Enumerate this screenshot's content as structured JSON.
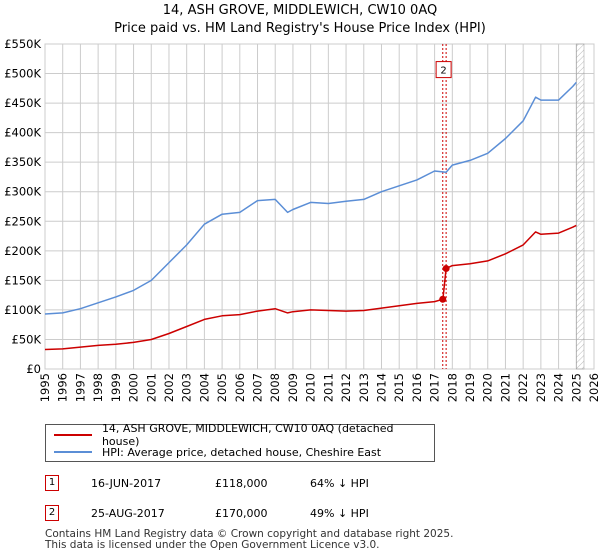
{
  "title": "14, ASH GROVE, MIDDLEWICH, CW10 0AQ",
  "subtitle": "Price paid vs. HM Land Registry's House Price Index (HPI)",
  "legend": {
    "property": "14, ASH GROVE, MIDDLEWICH, CW10 0AQ (detached house)",
    "hpi": "HPI: Average price, detached house, Cheshire East"
  },
  "sales": [
    {
      "num": "1",
      "date": "16-JUN-2017",
      "price": "£118,000",
      "delta": "64% ↓ HPI"
    },
    {
      "num": "2",
      "date": "25-AUG-2017",
      "price": "£170,000",
      "delta": "49% ↓ HPI"
    }
  ],
  "footer": {
    "line1": "Contains HM Land Registry data © Crown copyright and database right 2025.",
    "line2": "This data is licensed under the Open Government Licence v3.0."
  },
  "colors": {
    "property": "#cc0000",
    "hpi": "#5b8ed6",
    "grid": "#cccccc",
    "marker_line": "#cc0000"
  },
  "chart_data": {
    "type": "line",
    "ylim": [
      0,
      550000
    ],
    "xlim": [
      1995,
      2026
    ],
    "y_ticks": [
      {
        "v": 0,
        "label": "£0"
      },
      {
        "v": 50000,
        "label": "£50K"
      },
      {
        "v": 100000,
        "label": "£100K"
      },
      {
        "v": 150000,
        "label": "£150K"
      },
      {
        "v": 200000,
        "label": "£200K"
      },
      {
        "v": 250000,
        "label": "£250K"
      },
      {
        "v": 300000,
        "label": "£300K"
      },
      {
        "v": 350000,
        "label": "£350K"
      },
      {
        "v": 400000,
        "label": "£400K"
      },
      {
        "v": 450000,
        "label": "£450K"
      },
      {
        "v": 500000,
        "label": "£500K"
      },
      {
        "v": 550000,
        "label": "£550K"
      }
    ],
    "x_ticks": [
      "1995",
      "1996",
      "1997",
      "1998",
      "1999",
      "2000",
      "2001",
      "2002",
      "2003",
      "2004",
      "2005",
      "2006",
      "2007",
      "2008",
      "2009",
      "2010",
      "2011",
      "2012",
      "2013",
      "2014",
      "2015",
      "2016",
      "2017",
      "2018",
      "2019",
      "2020",
      "2021",
      "2022",
      "2023",
      "2024",
      "2025",
      "2026"
    ],
    "hatch_from": 2025.0,
    "markers": [
      {
        "label": "1",
        "x": 2017.46,
        "y": 118000,
        "show_box": false
      },
      {
        "label": "2",
        "x": 2017.65,
        "y": 170000,
        "show_box": true,
        "box_y": 505000
      }
    ],
    "series": [
      {
        "name": "HPI: Average price, detached house, Cheshire East",
        "color_key": "hpi",
        "x": [
          1995,
          1996,
          1997,
          1998,
          1999,
          2000,
          2001,
          2002,
          2003,
          2004,
          2005,
          2006,
          2007,
          2008,
          2008.7,
          2009,
          2010,
          2011,
          2012,
          2013,
          2014,
          2015,
          2016,
          2017,
          2017.65,
          2018,
          2019,
          2020,
          2021,
          2022,
          2022.7,
          2023,
          2024,
          2024.8,
          2025.0
        ],
        "y": [
          93000,
          95000,
          102000,
          112000,
          122000,
          133000,
          150000,
          180000,
          210000,
          245000,
          262000,
          265000,
          285000,
          287000,
          265000,
          270000,
          282000,
          280000,
          284000,
          287000,
          300000,
          310000,
          320000,
          335000,
          333000,
          345000,
          353000,
          365000,
          390000,
          420000,
          460000,
          455000,
          455000,
          478000,
          485000
        ]
      },
      {
        "name": "14, ASH GROVE, MIDDLEWICH, CW10 0AQ (detached house)",
        "color_key": "property",
        "x": [
          1995,
          1996,
          1997,
          1998,
          1999,
          2000,
          2001,
          2002,
          2003,
          2004,
          2005,
          2006,
          2007,
          2008,
          2008.7,
          2009,
          2010,
          2011,
          2012,
          2013,
          2014,
          2015,
          2016,
          2017,
          2017.46,
          2017.47,
          2017.65,
          2018,
          2019,
          2020,
          2021,
          2022,
          2022.7,
          2023,
          2024,
          2024.8,
          2025.0
        ],
        "y": [
          33000,
          34000,
          37000,
          40000,
          42000,
          45000,
          50000,
          60000,
          72000,
          84000,
          90000,
          92000,
          98000,
          102000,
          95000,
          97000,
          100000,
          99000,
          98000,
          99000,
          103000,
          107000,
          111000,
          114000,
          118000,
          118000,
          170000,
          175000,
          178000,
          183000,
          195000,
          210000,
          232000,
          228000,
          230000,
          240000,
          243000
        ]
      }
    ]
  }
}
